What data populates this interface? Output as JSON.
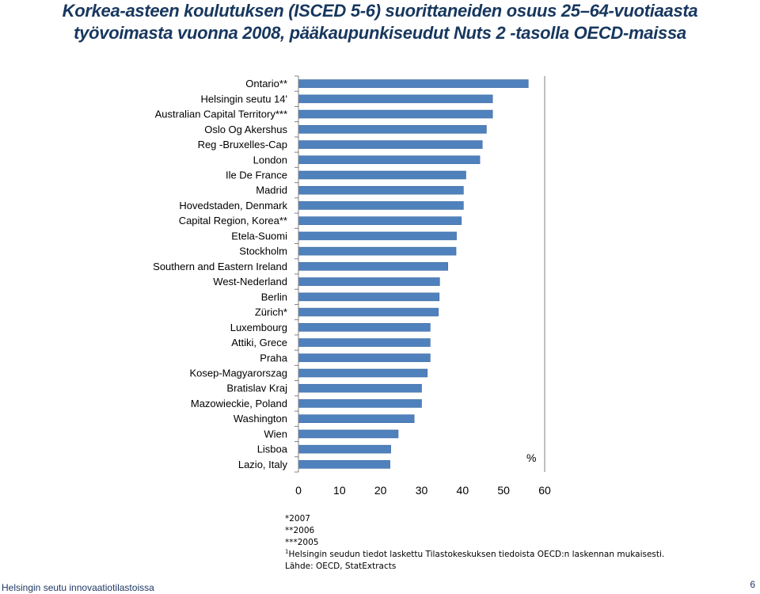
{
  "title_line1": "Korkea-asteen koulutuksen (ISCED 5-6) suorittaneiden osuus 25–64-vuotiaasta",
  "title_line2": "työvoimasta vuonna 2008, pääkaupunkiseudut Nuts 2 -tasolla OECD-maissa",
  "chart_data": {
    "type": "bar",
    "orientation": "horizontal",
    "categories": [
      "Ontario**",
      "Helsingin seutu 14'",
      "Australian Capital Territory***",
      "Oslo Og Akershus",
      "Reg -Bruxelles-Cap",
      "London",
      "Ile De France",
      "Madrid",
      "Hovedstaden, Denmark",
      "Capital Region, Korea**",
      "Etela-Suomi",
      "Stockholm",
      "Southern and Eastern Ireland",
      "West-Nederland",
      "Berlin",
      "Zürich*",
      "Luxembourg",
      "Attiki, Grece",
      "Praha",
      "Kosep-Magyarorszag",
      "Bratislav Kraj",
      "Mazowieckie, Poland",
      "Washington",
      "Wien",
      "Lisboa",
      "Lazio, Italy"
    ],
    "values": [
      56,
      47.3,
      47.3,
      45.8,
      44.8,
      44.2,
      40.8,
      40.2,
      40.2,
      39.7,
      38.5,
      38.4,
      36.4,
      34.4,
      34.3,
      34.1,
      32.1,
      32.1,
      32.1,
      31.4,
      30.0,
      30.0,
      28.2,
      24.3,
      22.5,
      22.3
    ],
    "xlim": [
      0,
      60
    ],
    "xticks": [
      "0",
      "10",
      "20",
      "30",
      "40",
      "50",
      "60"
    ],
    "unit_label": "%",
    "bar_color": "#4f81bd",
    "bar_edge_color": "#3b6aa0"
  },
  "notes": {
    "n1": "*2007",
    "n2": "**2006",
    "n3": "***2005",
    "n4_sup": "1",
    "n4": "Helsingin seudun tiedot laskettu Tilastokeskuksen tiedoista OECD:n laskennan mukaisesti.",
    "n5": "Lähde: OECD, StatExtracts"
  },
  "footer": {
    "left": "Helsingin seutu innovaatiotilastoissa",
    "page": "6"
  }
}
